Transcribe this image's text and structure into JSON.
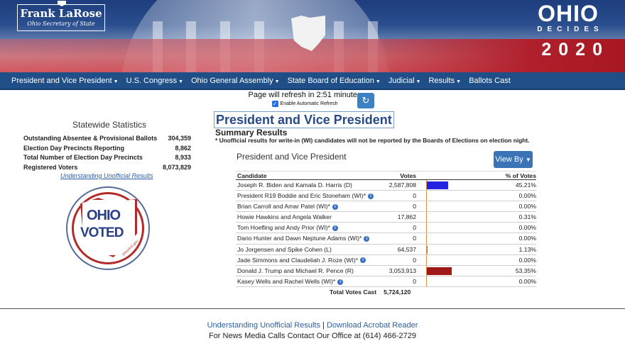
{
  "banner": {
    "official_name": "Frank LaRose",
    "official_title": "Ohio Secretary of State",
    "brand_big": "OHIO",
    "brand_small": "DECIDES",
    "year": "2020"
  },
  "nav": [
    {
      "label": "President and Vice President",
      "caret": true
    },
    {
      "label": "U.S. Congress",
      "caret": true
    },
    {
      "label": "Ohio General Assembly",
      "caret": true
    },
    {
      "label": "State Board of Education",
      "caret": true
    },
    {
      "label": "Judicial",
      "caret": true
    },
    {
      "label": "Results",
      "caret": true
    },
    {
      "label": "Ballots Cast",
      "caret": false
    }
  ],
  "refresh": {
    "countdown": "Page will refresh in 2:51 minutes",
    "toggle_label": "Enable Automatic Refresh",
    "enabled": true
  },
  "stats": {
    "title": "Statewide Statistics",
    "rows": [
      {
        "label": "Outstanding Absentee & Provisional Ballots",
        "value": "304,359"
      },
      {
        "label": "Election Day Precincts Reporting",
        "value": "8,862"
      },
      {
        "label": "Total Number of Election Day Precincts",
        "value": "8,933"
      },
      {
        "label": "Registered Voters",
        "value": "8,073,829"
      }
    ],
    "link": "Understanding Unofficial Results"
  },
  "badge": {
    "line1": "OHIO",
    "line2": "VOTED",
    "url": "OhioSoS.gov"
  },
  "main": {
    "title": "President and Vice President",
    "summary": "Summary Results",
    "note": "* Unofficial results for write-in (WI) candidates will not be reported by the Boards of Elections on election night.",
    "section": "President and Vice President",
    "view_by": "View By"
  },
  "table": {
    "headers": {
      "candidate": "Candidate",
      "votes": "Votes",
      "pct": "% of Votes"
    },
    "rows": [
      {
        "candidate": "Joseph R. Biden and Kamala D. Harris (D)",
        "votes": "2,587,808",
        "pct": "45.21%",
        "share": 45.21,
        "color": "#2424e0",
        "info": false
      },
      {
        "candidate": "President R19 Boddie and Eric Stoneham (WI)*",
        "votes": "0",
        "pct": "0.00%",
        "share": 0,
        "color": "#888888",
        "info": true
      },
      {
        "candidate": "Brian Carroll and Amar Patel (WI)*",
        "votes": "0",
        "pct": "0.00%",
        "share": 0,
        "color": "#888888",
        "info": true
      },
      {
        "candidate": "Howie Hawkins and Angela Walker",
        "votes": "17,862",
        "pct": "0.31%",
        "share": 0.31,
        "color": "#888888",
        "info": false
      },
      {
        "candidate": "Tom Hoefling and Andy Prior (WI)*",
        "votes": "0",
        "pct": "0.00%",
        "share": 0,
        "color": "#888888",
        "info": true
      },
      {
        "candidate": "Dario Hunter and Dawn Neptune Adams (WI)*",
        "votes": "0",
        "pct": "0.00%",
        "share": 0,
        "color": "#888888",
        "info": true
      },
      {
        "candidate": "Jo Jorgensen and Spike Cohen (L)",
        "votes": "64,537",
        "pct": "1.13%",
        "share": 1.13,
        "color": "#888888",
        "info": false
      },
      {
        "candidate": "Jade Simmons and Claudeliah J. Roze (WI)*",
        "votes": "0",
        "pct": "0.00%",
        "share": 0,
        "color": "#888888",
        "info": true
      },
      {
        "candidate": "Donald J. Trump and Michael R. Pence (R)",
        "votes": "3,053,913",
        "pct": "53.35%",
        "share": 53.35,
        "color": "#a01818",
        "info": false
      },
      {
        "candidate": "Kasey Wells and Rachel Wells (WI)*",
        "votes": "0",
        "pct": "0.00%",
        "share": 0,
        "color": "#888888",
        "info": true
      }
    ],
    "total_label": "Total Votes Cast",
    "total_value": "5,724,120"
  },
  "footer": {
    "link1": "Understanding Unofficial Results",
    "separator": "|",
    "link2": "Download Acrobat Reader",
    "contact": "For News Media Calls Contact Our Office at (614) 466-2729"
  }
}
